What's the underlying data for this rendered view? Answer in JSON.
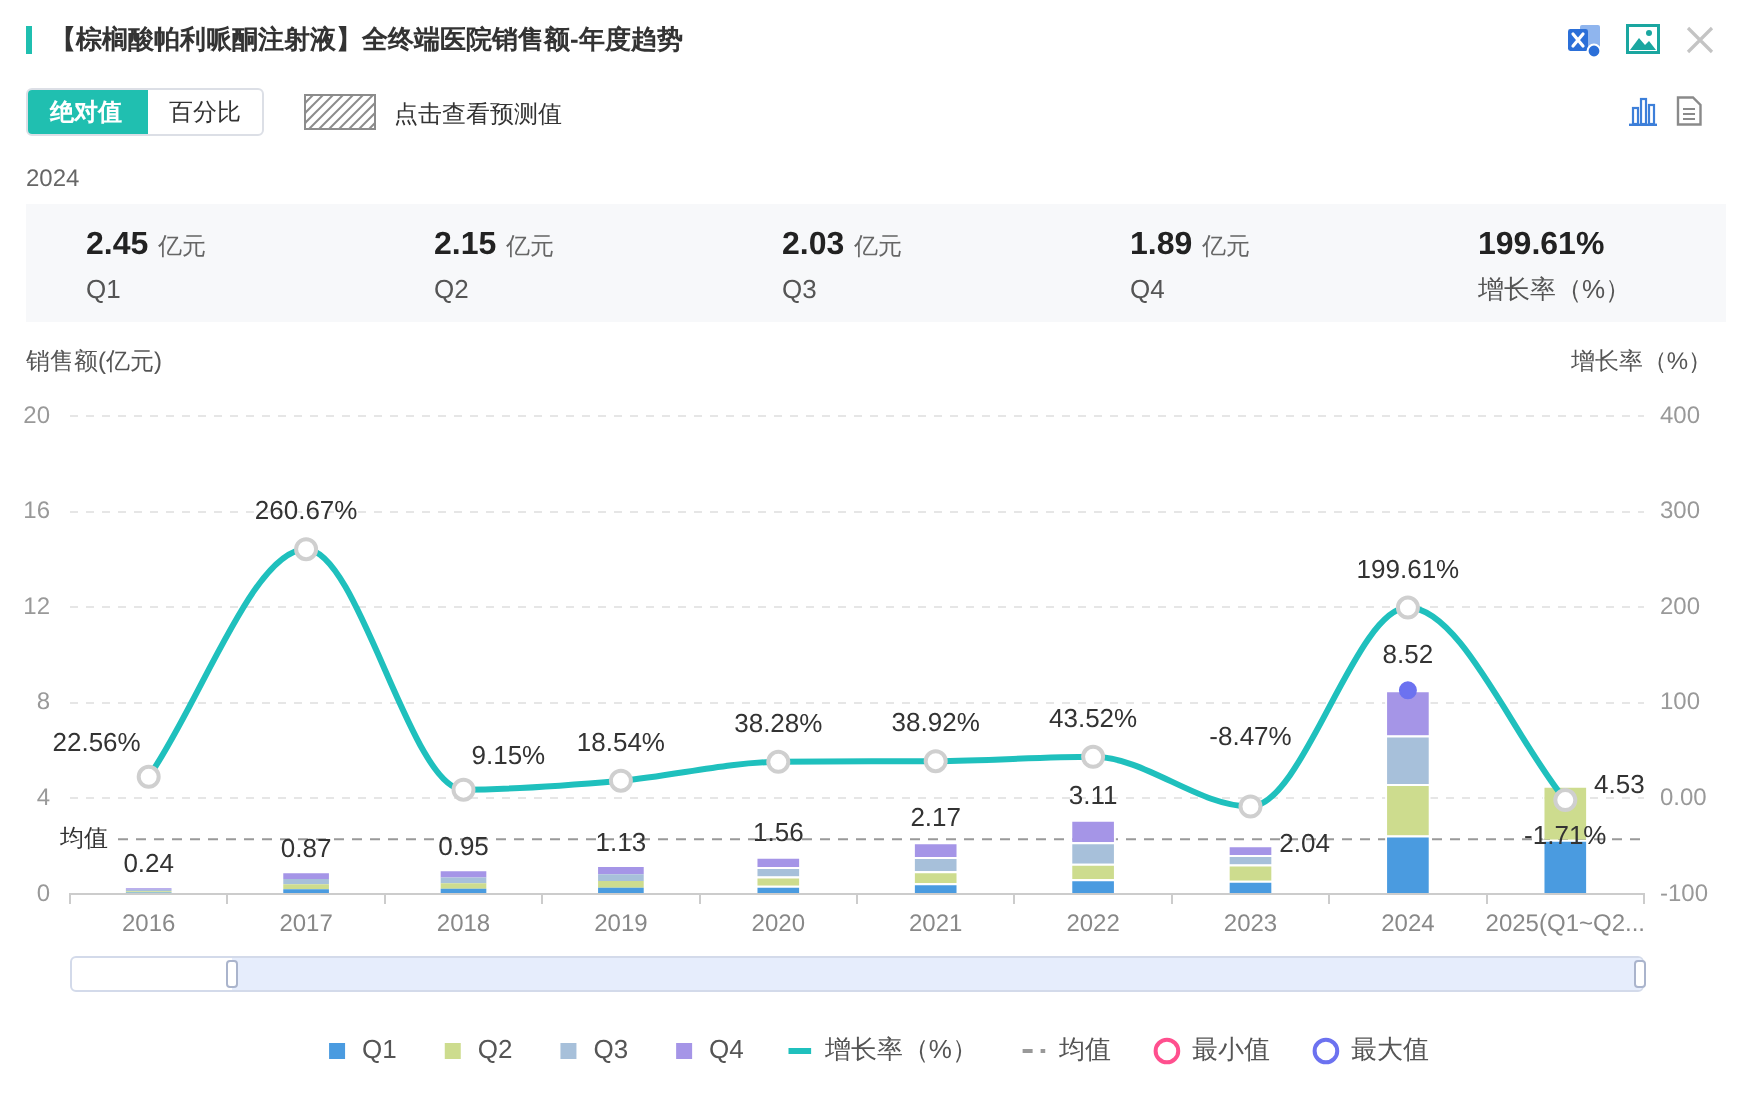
{
  "chart_data": {
    "type": "bar",
    "title": "【棕榈酸帕利哌酮注射液】全终端医院销售额-年度趋势",
    "ylabel": "销售额(亿元)",
    "y2label": "增长率（%）",
    "categories": [
      "2016",
      "2017",
      "2018",
      "2019",
      "2020",
      "2021",
      "2022",
      "2023",
      "2024",
      "2025(Q1~Q2..."
    ],
    "stacked": true,
    "series": [
      {
        "name": "Q1",
        "color": "#4a9be0",
        "values": [
          0.06,
          0.2,
          0.22,
          0.26,
          0.35,
          0.45,
          0.62,
          0.55,
          2.45,
          2.27
        ]
      },
      {
        "name": "Q2",
        "color": "#cddc8e",
        "values": [
          0.06,
          0.21,
          0.23,
          0.28,
          0.38,
          0.5,
          0.65,
          0.68,
          2.15,
          2.26
        ]
      },
      {
        "name": "Q3",
        "color": "#a7c0da",
        "values": [
          0.06,
          0.22,
          0.24,
          0.29,
          0.4,
          0.6,
          0.9,
          0.4,
          2.03,
          null
        ]
      },
      {
        "name": "Q4",
        "color": "#a595e7",
        "values": [
          0.06,
          0.24,
          0.26,
          0.3,
          0.43,
          0.62,
          0.94,
          0.41,
          1.89,
          null
        ]
      },
      {
        "name": "增长率（%）",
        "type": "line",
        "axis": "y2",
        "color": "#1fc0bd",
        "values": [
          22.56,
          260.67,
          9.15,
          18.54,
          38.28,
          38.92,
          43.52,
          -8.47,
          199.61,
          -1.71
        ],
        "value_labels": [
          "22.56%",
          "260.67%",
          "9.15%",
          "18.54%",
          "38.28%",
          "38.92%",
          "43.52%",
          "-8.47%",
          "199.61%",
          "-1.71%"
        ]
      },
      {
        "name": "最小值",
        "type": "scatter",
        "color": "#ff4f8e",
        "values": [
          null,
          null,
          null,
          null,
          null,
          null,
          null,
          null,
          null,
          null
        ]
      },
      {
        "name": "最大值",
        "type": "scatter",
        "color": "#6c72f0",
        "values": [
          null,
          null,
          null,
          null,
          null,
          null,
          null,
          null,
          8.52,
          null
        ]
      }
    ],
    "totals": [
      "0.24",
      "0.87",
      "0.95",
      "1.13",
      "1.56",
      "2.17",
      "3.11",
      "2.04",
      "8.52",
      "4.53"
    ],
    "ylim": [
      0,
      20
    ],
    "yticks": [
      0,
      4,
      8,
      12,
      16,
      20
    ],
    "y2lim": [
      -100,
      400
    ],
    "y2ticks": [
      -100,
      {
        "value": 0,
        "label": "0.00"
      },
      100,
      200,
      300,
      400
    ],
    "ref_lines": [
      {
        "axis": "y",
        "value": 2.29,
        "label": "均值",
        "color": "#999999",
        "line_style": "dashed"
      }
    ],
    "grid": "y",
    "legend": "bottom",
    "marker": "circle",
    "annotations": [
      "绝对值",
      "百分比",
      "点击查看预测值",
      "2024",
      "2.45 亿元",
      "Q1",
      "2.15 亿元",
      "Q2",
      "2.03 亿元",
      "Q3",
      "1.89 亿元",
      "Q4",
      "199.61%",
      "增长率（%）"
    ]
  }
}
